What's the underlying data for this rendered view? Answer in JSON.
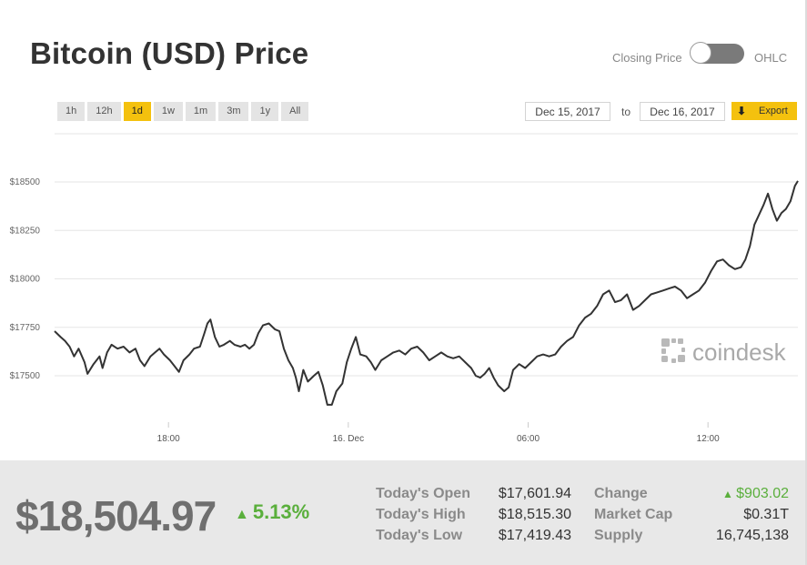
{
  "title": "Bitcoin (USD) Price",
  "toggle": {
    "left_label": "Closing Price",
    "right_label": "OHLC",
    "state": "closing"
  },
  "ranges": [
    {
      "label": "1h",
      "active": false
    },
    {
      "label": "12h",
      "active": false
    },
    {
      "label": "1d",
      "active": true
    },
    {
      "label": "1w",
      "active": false
    },
    {
      "label": "1m",
      "active": false
    },
    {
      "label": "3m",
      "active": false
    },
    {
      "label": "1y",
      "active": false
    },
    {
      "label": "All",
      "active": false
    }
  ],
  "date_range": {
    "from": "Dec 15, 2017",
    "to_label": "to",
    "to": "Dec 16, 2017"
  },
  "export": {
    "label": "Export",
    "icon": "download-arrow-icon"
  },
  "watermark": "coindesk",
  "colors": {
    "accent": "#f4c10e",
    "line": "#333333",
    "positive": "#5aaf3c",
    "footer_bg": "#e8e8e8"
  },
  "chart_data": {
    "type": "line",
    "x_unit": "hours since Dec 15, 2017 14:12",
    "y_ticks": [
      {
        "value": 18500,
        "label": "$18500"
      },
      {
        "value": 18250,
        "label": "$18250"
      },
      {
        "value": 18000,
        "label": "$18000"
      },
      {
        "value": 17750,
        "label": "$17750"
      },
      {
        "value": 17500,
        "label": "$17500"
      }
    ],
    "x_ticks": [
      {
        "value": 3.8,
        "label": "18:00"
      },
      {
        "value": 9.8,
        "label": "16. Dec"
      },
      {
        "value": 15.8,
        "label": "06:00"
      },
      {
        "value": 21.8,
        "label": "12:00"
      }
    ],
    "ylim": [
      17200,
      18800
    ],
    "xlim": [
      0,
      24.8
    ],
    "series": [
      {
        "name": "",
        "points": [
          [
            0.0,
            17730
          ],
          [
            0.2,
            17700
          ],
          [
            0.35,
            17680
          ],
          [
            0.5,
            17650
          ],
          [
            0.65,
            17600
          ],
          [
            0.8,
            17640
          ],
          [
            1.0,
            17570
          ],
          [
            1.1,
            17510
          ],
          [
            1.3,
            17560
          ],
          [
            1.5,
            17600
          ],
          [
            1.6,
            17540
          ],
          [
            1.75,
            17620
          ],
          [
            1.9,
            17660
          ],
          [
            2.1,
            17640
          ],
          [
            2.3,
            17650
          ],
          [
            2.5,
            17620
          ],
          [
            2.7,
            17640
          ],
          [
            2.85,
            17580
          ],
          [
            3.0,
            17550
          ],
          [
            3.2,
            17600
          ],
          [
            3.35,
            17620
          ],
          [
            3.5,
            17640
          ],
          [
            3.65,
            17610
          ],
          [
            3.85,
            17580
          ],
          [
            4.0,
            17550
          ],
          [
            4.15,
            17520
          ],
          [
            4.3,
            17580
          ],
          [
            4.5,
            17610
          ],
          [
            4.65,
            17640
          ],
          [
            4.85,
            17650
          ],
          [
            5.0,
            17720
          ],
          [
            5.1,
            17770
          ],
          [
            5.2,
            17790
          ],
          [
            5.35,
            17700
          ],
          [
            5.5,
            17650
          ],
          [
            5.65,
            17660
          ],
          [
            5.85,
            17680
          ],
          [
            6.0,
            17660
          ],
          [
            6.2,
            17650
          ],
          [
            6.35,
            17660
          ],
          [
            6.5,
            17640
          ],
          [
            6.65,
            17660
          ],
          [
            6.8,
            17720
          ],
          [
            6.95,
            17760
          ],
          [
            7.15,
            17770
          ],
          [
            7.35,
            17740
          ],
          [
            7.5,
            17730
          ],
          [
            7.65,
            17640
          ],
          [
            7.8,
            17580
          ],
          [
            7.95,
            17540
          ],
          [
            8.05,
            17490
          ],
          [
            8.15,
            17420
          ],
          [
            8.3,
            17530
          ],
          [
            8.45,
            17470
          ],
          [
            8.65,
            17500
          ],
          [
            8.8,
            17520
          ],
          [
            8.95,
            17450
          ],
          [
            9.1,
            17350
          ],
          [
            9.25,
            17350
          ],
          [
            9.4,
            17420
          ],
          [
            9.6,
            17460
          ],
          [
            9.75,
            17570
          ],
          [
            9.9,
            17640
          ],
          [
            10.05,
            17700
          ],
          [
            10.2,
            17610
          ],
          [
            10.4,
            17600
          ],
          [
            10.55,
            17570
          ],
          [
            10.7,
            17530
          ],
          [
            10.9,
            17580
          ],
          [
            11.1,
            17600
          ],
          [
            11.3,
            17620
          ],
          [
            11.5,
            17630
          ],
          [
            11.7,
            17610
          ],
          [
            11.9,
            17640
          ],
          [
            12.1,
            17650
          ],
          [
            12.3,
            17620
          ],
          [
            12.5,
            17580
          ],
          [
            12.7,
            17600
          ],
          [
            12.9,
            17620
          ],
          [
            13.1,
            17600
          ],
          [
            13.3,
            17590
          ],
          [
            13.5,
            17600
          ],
          [
            13.7,
            17570
          ],
          [
            13.9,
            17540
          ],
          [
            14.05,
            17500
          ],
          [
            14.2,
            17490
          ],
          [
            14.35,
            17510
          ],
          [
            14.5,
            17540
          ],
          [
            14.65,
            17490
          ],
          [
            14.8,
            17450
          ],
          [
            15.0,
            17420
          ],
          [
            15.15,
            17440
          ],
          [
            15.3,
            17530
          ],
          [
            15.5,
            17560
          ],
          [
            15.7,
            17540
          ],
          [
            15.9,
            17570
          ],
          [
            16.1,
            17600
          ],
          [
            16.3,
            17610
          ],
          [
            16.5,
            17600
          ],
          [
            16.7,
            17610
          ],
          [
            16.9,
            17650
          ],
          [
            17.1,
            17680
          ],
          [
            17.3,
            17700
          ],
          [
            17.5,
            17760
          ],
          [
            17.7,
            17800
          ],
          [
            17.9,
            17820
          ],
          [
            18.1,
            17860
          ],
          [
            18.3,
            17920
          ],
          [
            18.5,
            17940
          ],
          [
            18.7,
            17880
          ],
          [
            18.9,
            17890
          ],
          [
            19.1,
            17920
          ],
          [
            19.3,
            17840
          ],
          [
            19.5,
            17860
          ],
          [
            19.7,
            17890
          ],
          [
            19.9,
            17920
          ],
          [
            20.1,
            17930
          ],
          [
            20.3,
            17940
          ],
          [
            20.5,
            17950
          ],
          [
            20.7,
            17960
          ],
          [
            20.9,
            17940
          ],
          [
            21.1,
            17900
          ],
          [
            21.3,
            17920
          ],
          [
            21.5,
            17940
          ],
          [
            21.7,
            17980
          ],
          [
            21.9,
            18040
          ],
          [
            22.1,
            18090
          ],
          [
            22.3,
            18100
          ],
          [
            22.5,
            18070
          ],
          [
            22.7,
            18050
          ],
          [
            22.9,
            18060
          ],
          [
            23.05,
            18100
          ],
          [
            23.2,
            18170
          ],
          [
            23.35,
            18280
          ],
          [
            23.5,
            18330
          ],
          [
            23.65,
            18380
          ],
          [
            23.8,
            18440
          ],
          [
            23.95,
            18360
          ],
          [
            24.1,
            18300
          ],
          [
            24.25,
            18340
          ],
          [
            24.4,
            18360
          ],
          [
            24.55,
            18400
          ],
          [
            24.7,
            18480
          ],
          [
            24.8,
            18505
          ]
        ]
      }
    ]
  },
  "footer": {
    "price": "$18,504.97",
    "change_pct": "5.13%",
    "stats_left": [
      {
        "label": "Today's Open",
        "value": "$17,601.94"
      },
      {
        "label": "Today's High",
        "value": "$18,515.30"
      },
      {
        "label": "Today's Low",
        "value": "$17,419.43"
      }
    ],
    "stats_right": [
      {
        "label": "Change",
        "value": "$903.02",
        "positive": true
      },
      {
        "label": "Market Cap",
        "value": "$0.31T",
        "positive": false
      },
      {
        "label": "Supply",
        "value": "16,745,138",
        "positive": false
      }
    ]
  }
}
